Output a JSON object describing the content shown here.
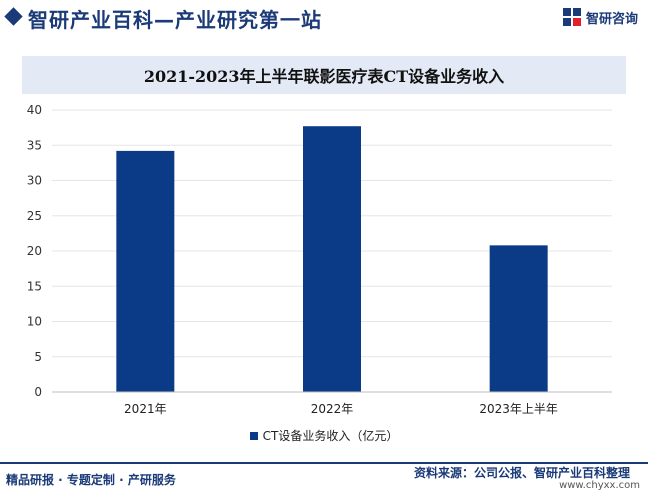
{
  "header": {
    "site_title": "智研产业百科—产业研究第一站",
    "brand_name": "智研咨询",
    "brand_icon": "zhiyan-logo-icon"
  },
  "chart_data": {
    "type": "bar",
    "title": "2021-2023年上半年联影医疗表CT设备业务收入",
    "categories": [
      "2021年",
      "2022年",
      "2023年上半年"
    ],
    "series": [
      {
        "name": "CT设备业务收入（亿元）",
        "values": [
          34.2,
          37.7,
          20.8
        ],
        "color": "#0b3a87"
      }
    ],
    "ylim": [
      0,
      40
    ],
    "yticks": [
      0,
      5,
      10,
      15,
      20,
      25,
      30,
      35,
      40
    ],
    "grid": true,
    "legend": "bottom-center"
  },
  "footer": {
    "left_text": "精品研报 · 专题定制 · 产研服务",
    "source_text": "资料来源：公司公报、智研产业百科整理",
    "url": "www.chyxx.com"
  }
}
